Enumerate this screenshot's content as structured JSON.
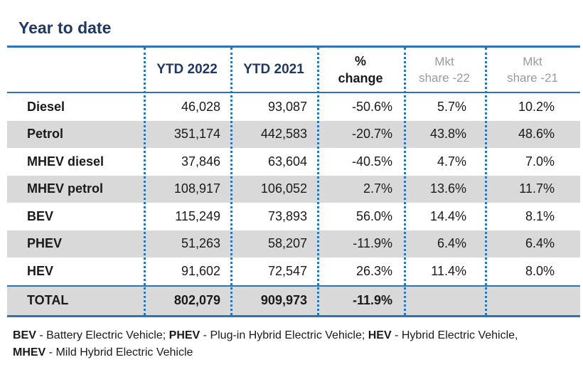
{
  "title": "Year to date",
  "headers": {
    "col1": "YTD 2022",
    "col2": "YTD 2021",
    "col3_line1": "%",
    "col3_line2": "change",
    "col4_line1": "Mkt",
    "col4_line2": "share -22",
    "col5_line1": "Mkt",
    "col5_line2": "share -21"
  },
  "rows": [
    {
      "label": "Diesel",
      "ytd2022": "46,028",
      "ytd2021": "93,087",
      "change": "-50.6%",
      "share22": "5.7%",
      "share21": "10.2%"
    },
    {
      "label": "Petrol",
      "ytd2022": "351,174",
      "ytd2021": "442,583",
      "change": "-20.7%",
      "share22": "43.8%",
      "share21": "48.6%"
    },
    {
      "label": "MHEV diesel",
      "ytd2022": "37,846",
      "ytd2021": "63,604",
      "change": "-40.5%",
      "share22": "4.7%",
      "share21": "7.0%"
    },
    {
      "label": "MHEV petrol",
      "ytd2022": "108,917",
      "ytd2021": "106,052",
      "change": "2.7%",
      "share22": "13.6%",
      "share21": "11.7%"
    },
    {
      "label": "BEV",
      "ytd2022": "115,249",
      "ytd2021": "73,893",
      "change": "56.0%",
      "share22": "14.4%",
      "share21": "8.1%"
    },
    {
      "label": "PHEV",
      "ytd2022": "51,263",
      "ytd2021": "58,207",
      "change": "-11.9%",
      "share22": "6.4%",
      "share21": "6.4%"
    },
    {
      "label": "HEV",
      "ytd2022": "91,602",
      "ytd2021": "72,547",
      "change": "26.3%",
      "share22": "11.4%",
      "share21": "8.0%"
    }
  ],
  "total": {
    "label": "TOTAL",
    "ytd2022": "802,079",
    "ytd2021": "909,973",
    "change": "-11.9%",
    "share22": "",
    "share21": ""
  },
  "legend": [
    {
      "abbr": "BEV",
      "desc": " - Battery Electric Vehicle; "
    },
    {
      "abbr": "PHEV",
      "desc": " - Plug-in Hybrid Electric Vehicle; "
    },
    {
      "abbr": "HEV",
      "desc": " - Hybrid Electric Vehicle, "
    },
    {
      "abbr": "MHEV",
      "desc": " - Mild Hybrid Electric Vehicle"
    }
  ],
  "colors": {
    "accent": "#2e74b5",
    "title": "#1f3864",
    "shade": "#d9d9d9"
  }
}
